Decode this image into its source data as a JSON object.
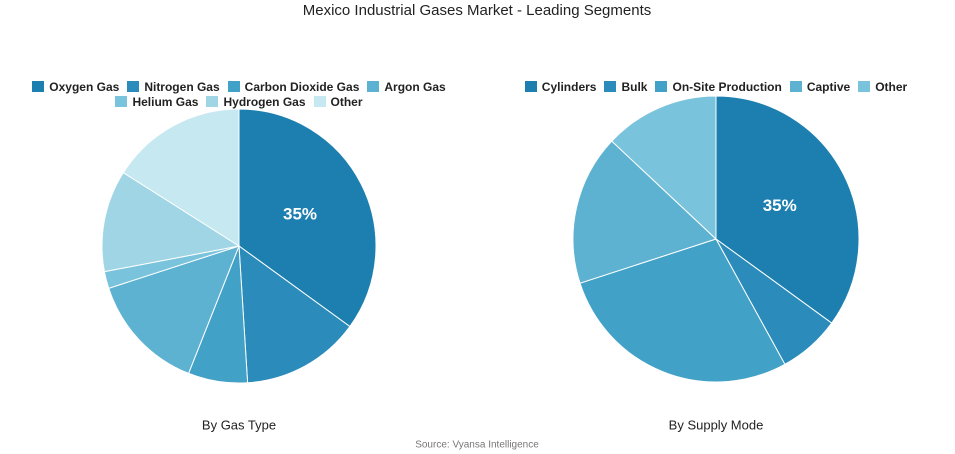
{
  "title": "Mexico Industrial Gases Market - Leading Segments",
  "source": "Source: Vyansa Intelligence",
  "chart_data": [
    {
      "type": "pie",
      "subtitle": "By Gas Type",
      "categories": [
        "Oxygen Gas",
        "Nitrogen Gas",
        "Carbon Dioxide Gas",
        "Argon Gas",
        "Helium Gas",
        "Hydrogen Gas",
        "Other"
      ],
      "values": [
        35,
        14,
        7,
        14,
        2,
        12,
        16
      ],
      "value_labels": [
        "35%",
        null,
        null,
        null,
        null,
        null,
        null
      ],
      "colors": [
        "#1c7fb0",
        "#2b8cbc",
        "#42a1c7",
        "#5db2d2",
        "#7ac3dc",
        "#a0d5e5",
        "#c6e8f0"
      ]
    },
    {
      "type": "pie",
      "subtitle": "By Supply Mode",
      "categories": [
        "Cylinders",
        "Bulk",
        "On-Site Production",
        "Captive",
        "Other"
      ],
      "values": [
        35,
        7,
        28,
        17,
        13
      ],
      "value_labels": [
        "35%",
        null,
        null,
        null,
        null
      ],
      "colors": [
        "#1c7fb0",
        "#2b8cbc",
        "#42a1c7",
        "#5db2d2",
        "#7ac3dc"
      ]
    }
  ]
}
